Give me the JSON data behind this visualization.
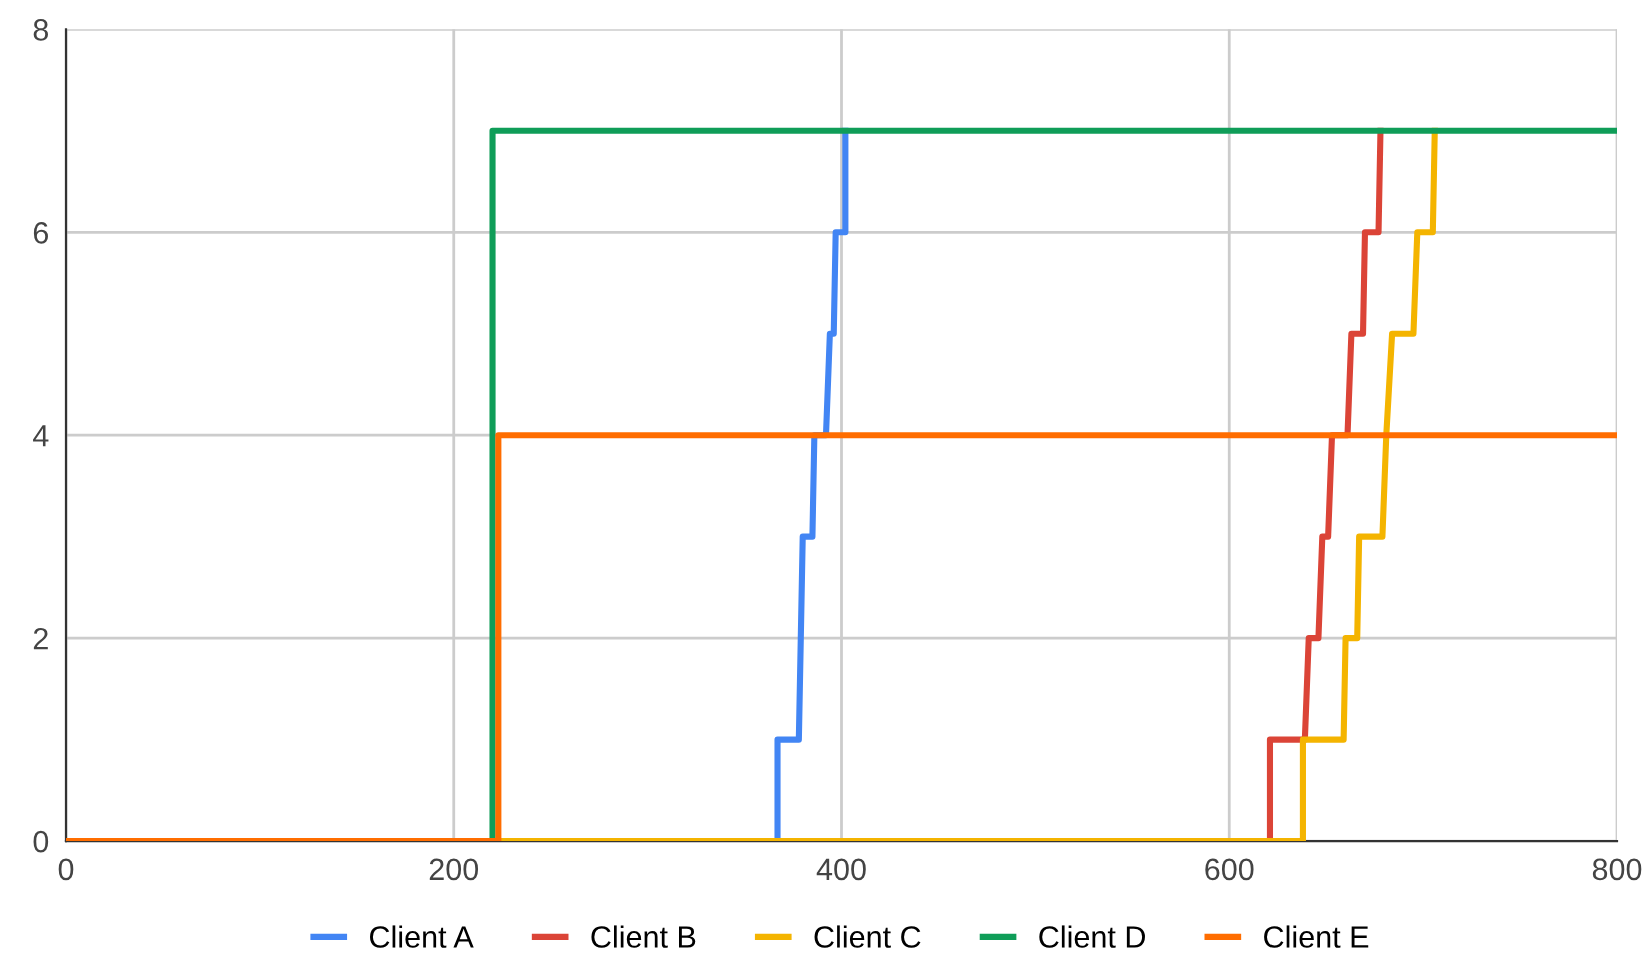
{
  "chart_data": {
    "type": "line",
    "xlim": [
      0,
      800
    ],
    "ylim": [
      0,
      8
    ],
    "xticks": [
      0,
      200,
      400,
      600,
      800
    ],
    "yticks": [
      0,
      2,
      4,
      6,
      8
    ],
    "grid": true,
    "legend": "bottom",
    "marker": "none",
    "line_style": "solid",
    "series": [
      {
        "name": "Client A",
        "color": "#4285f4",
        "x": [
          367,
          367,
          378,
          379,
          380,
          385,
          386,
          392,
          394,
          396,
          397,
          402,
          402
        ],
        "values": [
          0,
          1,
          1,
          2,
          3,
          3,
          4,
          4,
          5,
          5,
          6,
          6,
          7
        ]
      },
      {
        "name": "Client B",
        "color": "#db4437",
        "x": [
          621,
          621,
          639,
          641,
          646,
          648,
          651,
          653,
          661,
          663,
          669,
          670,
          677,
          678
        ],
        "values": [
          0,
          1,
          1,
          2,
          2,
          3,
          3,
          4,
          4,
          5,
          5,
          6,
          6,
          7
        ]
      },
      {
        "name": "Client C",
        "color": "#f4b400",
        "x": [
          0,
          638,
          638,
          659,
          660,
          666,
          667,
          679,
          681,
          684,
          695,
          697,
          705,
          706
        ],
        "values": [
          0,
          0,
          1,
          1,
          2,
          2,
          3,
          3,
          4,
          5,
          5,
          6,
          6,
          7
        ]
      },
      {
        "name": "Client D",
        "color": "#0f9d58",
        "x": [
          220,
          220,
          800
        ],
        "values": [
          0,
          7,
          7
        ]
      },
      {
        "name": "Client E",
        "color": "#ff6d00",
        "x": [
          0,
          223,
          223,
          800
        ],
        "values": [
          0,
          0,
          4,
          4
        ]
      }
    ]
  }
}
